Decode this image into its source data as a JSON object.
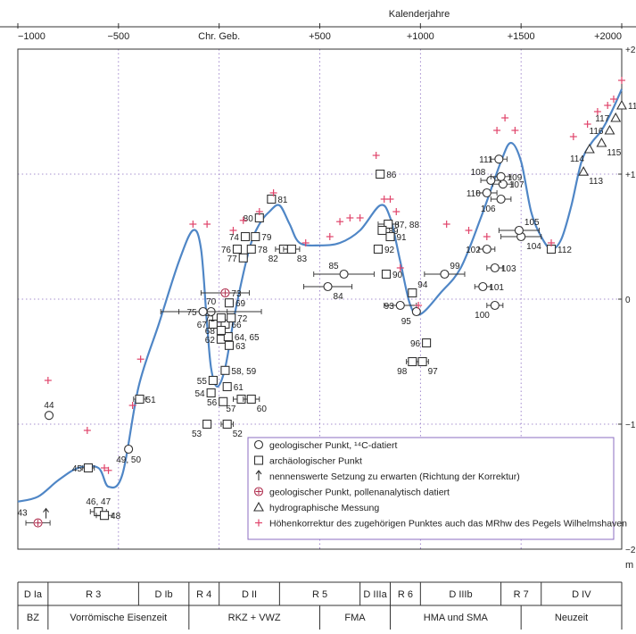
{
  "chart_data": {
    "type": "scatter",
    "title": "",
    "x_axis_title": "Kalenderjahre",
    "y_axis_unit": "m",
    "xlim": [
      -1000,
      2000
    ],
    "ylim": [
      -2,
      2
    ],
    "x_ticks": [
      {
        "value": -1000,
        "label": "−1000"
      },
      {
        "value": -500,
        "label": "−500"
      },
      {
        "value": 0,
        "label": "Chr. Geb."
      },
      {
        "value": 500,
        "label": "+500"
      },
      {
        "value": 1000,
        "label": "+1000"
      },
      {
        "value": 1500,
        "label": "+1500"
      },
      {
        "value": 2000,
        "label": "+2000"
      }
    ],
    "y_ticks": [
      {
        "value": 2,
        "label": "+2"
      },
      {
        "value": 1,
        "label": "+1"
      },
      {
        "value": 0,
        "label": "0"
      },
      {
        "value": -1,
        "label": "−1"
      },
      {
        "value": -2,
        "label": "−2"
      }
    ],
    "grid": "dotted",
    "colors": {
      "curve": "#4f86c6",
      "cross": "#e0446a",
      "grid": "#8b6cc0",
      "legend_border": "#8b6cc0",
      "marker": "#333333"
    },
    "curve": [
      [
        -1000,
        -1.62
      ],
      [
        -900,
        -1.58
      ],
      [
        -800,
        -1.45
      ],
      [
        -700,
        -1.35
      ],
      [
        -600,
        -1.35
      ],
      [
        -550,
        -1.5
      ],
      [
        -480,
        -1.4
      ],
      [
        -400,
        -0.7
      ],
      [
        -300,
        -0.2
      ],
      [
        -200,
        0.3
      ],
      [
        -130,
        0.55
      ],
      [
        -90,
        0.4
      ],
      [
        -60,
        -0.2
      ],
      [
        -40,
        -0.55
      ],
      [
        -10,
        -0.7
      ],
      [
        30,
        -0.55
      ],
      [
        80,
        -0.1
      ],
      [
        150,
        0.4
      ],
      [
        200,
        0.6
      ],
      [
        250,
        0.7
      ],
      [
        300,
        0.75
      ],
      [
        350,
        0.6
      ],
      [
        400,
        0.45
      ],
      [
        500,
        0.43
      ],
      [
        600,
        0.45
      ],
      [
        700,
        0.55
      ],
      [
        800,
        0.75
      ],
      [
        850,
        0.65
      ],
      [
        900,
        0.3
      ],
      [
        950,
        -0.05
      ],
      [
        1000,
        -0.12
      ],
      [
        1100,
        0.05
      ],
      [
        1200,
        0.25
      ],
      [
        1300,
        0.65
      ],
      [
        1400,
        1.1
      ],
      [
        1450,
        1.25
      ],
      [
        1500,
        1.1
      ],
      [
        1550,
        0.7
      ],
      [
        1600,
        0.5
      ],
      [
        1650,
        0.4
      ],
      [
        1700,
        0.48
      ],
      [
        1750,
        0.75
      ],
      [
        1800,
        1.1
      ],
      [
        1850,
        1.25
      ],
      [
        1900,
        1.35
      ],
      [
        1950,
        1.5
      ],
      [
        2000,
        1.68
      ]
    ],
    "points": [
      {
        "id": "43",
        "x": -900,
        "y": -1.79,
        "type": "pollen",
        "xerr": 60,
        "arrow": true,
        "label_pos": "left"
      },
      {
        "id": "44",
        "x": -845,
        "y": -0.93,
        "type": "geo",
        "label_pos": "above"
      },
      {
        "id": "45",
        "x": -650,
        "y": -1.35,
        "type": "arch",
        "xerr": 30,
        "label_pos": "left"
      },
      {
        "id": "46, 47",
        "x": -600,
        "y": -1.7,
        "type": "arch",
        "xerr": 40,
        "label_pos": "above"
      },
      {
        "id": "48",
        "x": -570,
        "y": -1.73,
        "type": "arch",
        "xerr": 40,
        "label_pos": "right"
      },
      {
        "id": "49, 50",
        "x": -450,
        "y": -1.2,
        "type": "geo",
        "label_pos": "below"
      },
      {
        "id": "51",
        "x": -395,
        "y": -0.8,
        "type": "arch",
        "xerr": 30,
        "label_pos": "right"
      },
      {
        "id": "53",
        "x": -60,
        "y": -1.0,
        "type": "arch",
        "label_pos": "below-left"
      },
      {
        "id": "52",
        "x": 40,
        "y": -1.0,
        "type": "arch",
        "xerr": 30,
        "label_pos": "below-right"
      },
      {
        "id": "54",
        "x": -40,
        "y": -0.75,
        "type": "arch",
        "label_pos": "left"
      },
      {
        "id": "55",
        "x": -30,
        "y": -0.65,
        "type": "arch",
        "label_pos": "left"
      },
      {
        "id": "56",
        "x": 20,
        "y": -0.82,
        "type": "arch",
        "label_pos": "left"
      },
      {
        "id": "57",
        "x": 110,
        "y": -0.8,
        "type": "arch",
        "xerr": 40,
        "label_pos": "below-left"
      },
      {
        "id": "58, 59",
        "x": 30,
        "y": -0.57,
        "type": "arch",
        "label_pos": "right"
      },
      {
        "id": "60",
        "x": 160,
        "y": -0.8,
        "type": "arch",
        "xerr": 40,
        "label_pos": "below-right"
      },
      {
        "id": "61",
        "x": 40,
        "y": -0.7,
        "type": "arch",
        "label_pos": "right"
      },
      {
        "id": "62",
        "x": 10,
        "y": -0.32,
        "type": "arch",
        "label_pos": "left"
      },
      {
        "id": "63",
        "x": 50,
        "y": -0.37,
        "type": "arch",
        "label_pos": "right"
      },
      {
        "id": "64, 65",
        "x": 45,
        "y": -0.3,
        "type": "arch",
        "label_pos": "right"
      },
      {
        "id": "66",
        "x": 30,
        "y": -0.2,
        "type": "arch",
        "label_pos": "right"
      },
      {
        "id": "67",
        "x": -30,
        "y": -0.2,
        "type": "arch",
        "label_pos": "left"
      },
      {
        "id": "68",
        "x": 10,
        "y": -0.25,
        "type": "arch",
        "label_pos": "left"
      },
      {
        "id": "69",
        "x": 50,
        "y": -0.03,
        "type": "arch",
        "label_pos": "right"
      },
      {
        "id": "70",
        "x": -40,
        "y": -0.1,
        "type": "geo",
        "xerr": 250,
        "label_pos": "above"
      },
      {
        "id": "71",
        "x": 10,
        "y": -0.15,
        "type": "arch",
        "label_pos": "left"
      },
      {
        "id": "72",
        "x": 60,
        "y": -0.15,
        "type": "arch",
        "label_pos": "right"
      },
      {
        "id": "73",
        "x": 30,
        "y": 0.05,
        "type": "pollen",
        "xerr": 120,
        "label_pos": "right"
      },
      {
        "id": "75",
        "x": -80,
        "y": -0.1,
        "type": "geo",
        "xerr": 120,
        "label_pos": "left"
      },
      {
        "id": "76",
        "x": 90,
        "y": 0.4,
        "type": "arch",
        "label_pos": "left"
      },
      {
        "id": "74",
        "x": 130,
        "y": 0.5,
        "type": "arch",
        "label_pos": "left"
      },
      {
        "id": "77",
        "x": 120,
        "y": 0.33,
        "type": "arch",
        "label_pos": "left"
      },
      {
        "id": "78",
        "x": 160,
        "y": 0.4,
        "type": "arch",
        "label_pos": "right"
      },
      {
        "id": "79",
        "x": 180,
        "y": 0.5,
        "type": "arch",
        "label_pos": "right"
      },
      {
        "id": "80",
        "x": 200,
        "y": 0.65,
        "type": "arch",
        "label_pos": "left"
      },
      {
        "id": "81",
        "x": 260,
        "y": 0.8,
        "type": "arch",
        "label_pos": "right"
      },
      {
        "id": "82",
        "x": 320,
        "y": 0.4,
        "type": "arch",
        "xerr": 40,
        "label_pos": "below-left"
      },
      {
        "id": "83",
        "x": 360,
        "y": 0.4,
        "type": "arch",
        "xerr": 40,
        "label_pos": "below-right"
      },
      {
        "id": "84",
        "x": 540,
        "y": 0.1,
        "type": "geo",
        "xerr": 120,
        "label_pos": "below-right"
      },
      {
        "id": "85",
        "x": 620,
        "y": 0.2,
        "type": "geo",
        "xerr": 150,
        "label_pos": "above-left"
      },
      {
        "id": "86",
        "x": 800,
        "y": 1.0,
        "type": "arch",
        "label_pos": "right"
      },
      {
        "id": "87, 88",
        "x": 840,
        "y": 0.6,
        "type": "arch",
        "xerr": 50,
        "label_pos": "right"
      },
      {
        "id": "89",
        "x": 810,
        "y": 0.55,
        "type": "arch",
        "label_pos": "right"
      },
      {
        "id": "90",
        "x": 830,
        "y": 0.2,
        "type": "arch",
        "label_pos": "right"
      },
      {
        "id": "91",
        "x": 850,
        "y": 0.5,
        "type": "arch",
        "label_pos": "right"
      },
      {
        "id": "92",
        "x": 790,
        "y": 0.4,
        "type": "arch",
        "label_pos": "right"
      },
      {
        "id": "93",
        "x": 900,
        "y": -0.05,
        "type": "geo",
        "xerr": 80,
        "label_pos": "left"
      },
      {
        "id": "94",
        "x": 960,
        "y": 0.05,
        "type": "arch",
        "label_pos": "above-right"
      },
      {
        "id": "95",
        "x": 980,
        "y": -0.1,
        "type": "geo",
        "label_pos": "below-left"
      },
      {
        "id": "96",
        "x": 1030,
        "y": -0.35,
        "type": "arch",
        "label_pos": "left"
      },
      {
        "id": "98",
        "x": 960,
        "y": -0.5,
        "type": "arch",
        "xerr": 30,
        "label_pos": "below-left"
      },
      {
        "id": "97",
        "x": 1010,
        "y": -0.5,
        "type": "arch",
        "xerr": 30,
        "label_pos": "below-right"
      },
      {
        "id": "99",
        "x": 1120,
        "y": 0.2,
        "type": "geo",
        "xerr": 100,
        "label_pos": "above-right"
      },
      {
        "id": "100",
        "x": 1370,
        "y": -0.05,
        "type": "geo",
        "xerr": 40,
        "label_pos": "below-left"
      },
      {
        "id": "101",
        "x": 1310,
        "y": 0.1,
        "type": "geo",
        "xerr": 40,
        "label_pos": "right"
      },
      {
        "id": "102",
        "x": 1330,
        "y": 0.4,
        "type": "geo",
        "xerr": 40,
        "label_pos": "left"
      },
      {
        "id": "103",
        "x": 1370,
        "y": 0.25,
        "type": "geo",
        "xerr": 40,
        "label_pos": "right"
      },
      {
        "id": "104",
        "x": 1500,
        "y": 0.5,
        "type": "geo",
        "xerr": 100,
        "label_pos": "below-right"
      },
      {
        "id": "105",
        "x": 1490,
        "y": 0.55,
        "type": "geo",
        "xerr": 100,
        "label_pos": "above-right"
      },
      {
        "id": "106",
        "x": 1400,
        "y": 0.8,
        "type": "geo",
        "xerr": 50,
        "label_pos": "below-left"
      },
      {
        "id": "107",
        "x": 1410,
        "y": 0.92,
        "type": "geo",
        "xerr": 50,
        "label_pos": "right"
      },
      {
        "id": "108",
        "x": 1350,
        "y": 0.95,
        "type": "geo",
        "xerr": 50,
        "label_pos": "above-left"
      },
      {
        "id": "109",
        "x": 1400,
        "y": 0.98,
        "type": "geo",
        "xerr": 50,
        "label_pos": "right"
      },
      {
        "id": "110",
        "x": 1330,
        "y": 0.85,
        "type": "geo",
        "xerr": 50,
        "label_pos": "left"
      },
      {
        "id": "111",
        "x": 1390,
        "y": 1.12,
        "type": "geo",
        "xerr": 40,
        "label_pos": "left"
      },
      {
        "id": "112",
        "x": 1650,
        "y": 0.4,
        "type": "arch",
        "label_pos": "right"
      },
      {
        "id": "113",
        "x": 1810,
        "y": 1.02,
        "type": "hydro",
        "label_pos": "below-right"
      },
      {
        "id": "114",
        "x": 1840,
        "y": 1.2,
        "type": "hydro",
        "label_pos": "below-left"
      },
      {
        "id": "115",
        "x": 1900,
        "y": 1.25,
        "type": "hydro",
        "label_pos": "below-right"
      },
      {
        "id": "116",
        "x": 1940,
        "y": 1.35,
        "type": "hydro",
        "label_pos": "left"
      },
      {
        "id": "117",
        "x": 1970,
        "y": 1.45,
        "type": "hydro",
        "label_pos": "left"
      },
      {
        "id": "118",
        "x": 2000,
        "y": 1.55,
        "type": "hydro",
        "label_pos": "right"
      }
    ],
    "crosses": [
      [
        -850,
        -0.65
      ],
      [
        -655,
        -1.05
      ],
      [
        -570,
        -1.35
      ],
      [
        -550,
        -1.37
      ],
      [
        -430,
        -0.85
      ],
      [
        -390,
        -0.48
      ],
      [
        -130,
        0.6
      ],
      [
        -60,
        0.6
      ],
      [
        70,
        0.55
      ],
      [
        120,
        0.63
      ],
      [
        200,
        0.7
      ],
      [
        270,
        0.85
      ],
      [
        430,
        0.45
      ],
      [
        550,
        0.5
      ],
      [
        600,
        0.62
      ],
      [
        650,
        0.65
      ],
      [
        700,
        0.65
      ],
      [
        780,
        1.15
      ],
      [
        820,
        0.8
      ],
      [
        850,
        0.8
      ],
      [
        880,
        0.7
      ],
      [
        900,
        0.25
      ],
      [
        990,
        -0.05
      ],
      [
        1130,
        0.6
      ],
      [
        1240,
        0.55
      ],
      [
        1330,
        0.5
      ],
      [
        1380,
        1.35
      ],
      [
        1420,
        1.45
      ],
      [
        1470,
        1.35
      ],
      [
        1650,
        0.45
      ],
      [
        1760,
        1.3
      ],
      [
        1830,
        1.4
      ],
      [
        1880,
        1.5
      ],
      [
        1930,
        1.55
      ],
      [
        1960,
        1.6
      ],
      [
        2000,
        1.75
      ]
    ],
    "legend": [
      {
        "symbol": "geo",
        "text": "geologischer Punkt, ¹⁴C-datiert"
      },
      {
        "symbol": "arch",
        "text": "archäologischer Punkt"
      },
      {
        "symbol": "arrow",
        "text": "nennenswerte Setzung zu erwarten (Richtung der Korrektur)"
      },
      {
        "symbol": "pollen",
        "text": "geologischer Punkt, pollenanalytisch datiert"
      },
      {
        "symbol": "hydro",
        "text": "hydrographische Messung"
      },
      {
        "symbol": "cross",
        "text": "Höhenkorrektur des zugehörigen Punktes auch das MRhw des Pegels Wilhelmshaven"
      }
    ],
    "period_rows": [
      [
        {
          "label": "D Ia",
          "from": -1000,
          "to": -850
        },
        {
          "label": "R 3",
          "from": -850,
          "to": -400
        },
        {
          "label": "D Ib",
          "from": -400,
          "to": -150
        },
        {
          "label": "R 4",
          "from": -150,
          "to": 0
        },
        {
          "label": "D II",
          "from": 0,
          "to": 300
        },
        {
          "label": "R 5",
          "from": 300,
          "to": 700
        },
        {
          "label": "D IIIa",
          "from": 700,
          "to": 850
        },
        {
          "label": "R 6",
          "from": 850,
          "to": 1000
        },
        {
          "label": "D IIIb",
          "from": 1000,
          "to": 1400
        },
        {
          "label": "R 7",
          "from": 1400,
          "to": 1600
        },
        {
          "label": "D IV",
          "from": 1600,
          "to": 2000
        }
      ],
      [
        {
          "label": "BZ",
          "from": -1000,
          "to": -850
        },
        {
          "label": "Vorrömische Eisenzeit",
          "from": -850,
          "to": -150
        },
        {
          "label": "RKZ + VWZ",
          "from": -150,
          "to": 500
        },
        {
          "label": "FMA",
          "from": 500,
          "to": 850
        },
        {
          "label": "HMA und SMA",
          "from": 850,
          "to": 1500
        },
        {
          "label": "Neuzeit",
          "from": 1500,
          "to": 2000
        }
      ]
    ]
  }
}
